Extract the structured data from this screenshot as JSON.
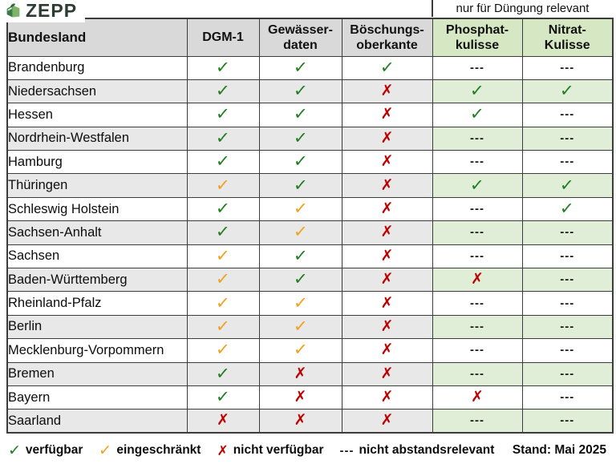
{
  "logo": {
    "text": "ZEPP"
  },
  "top_note": {
    "text": "nur für Düngung relevant"
  },
  "table": {
    "columns": [
      {
        "id": "bundesland",
        "label": "Bundesland",
        "header_bg": "gray"
      },
      {
        "id": "dgm-1",
        "label": "DGM-1",
        "header_bg": "gray"
      },
      {
        "id": "gewaesserdaten",
        "label": "Gewässer-\ndaten",
        "header_bg": "gray"
      },
      {
        "id": "boeschungsoberkante",
        "label": "Böschungs-\noberkante",
        "header_bg": "gray"
      },
      {
        "id": "phosphatkulisse",
        "label": "Phosphat-\nkulisse",
        "header_bg": "green"
      },
      {
        "id": "nitratkulisse",
        "label": "Nitrat-\nKulisse",
        "header_bg": "green"
      }
    ],
    "rows": [
      {
        "bundesland": "Brandenburg",
        "cells": [
          "check-green",
          "check-green",
          "check-green",
          "dash",
          "dash"
        ]
      },
      {
        "bundesland": "Niedersachsen",
        "cells": [
          "check-green",
          "check-green",
          "x-red",
          "check-green",
          "check-green"
        ]
      },
      {
        "bundesland": "Hessen",
        "cells": [
          "check-green",
          "check-green",
          "x-red",
          "check-green",
          "dash"
        ]
      },
      {
        "bundesland": "Nordrhein-Westfalen",
        "cells": [
          "check-green",
          "check-green",
          "x-red",
          "dash",
          "dash"
        ]
      },
      {
        "bundesland": "Hamburg",
        "cells": [
          "check-green",
          "check-green",
          "x-red",
          "dash",
          "dash"
        ]
      },
      {
        "bundesland": "Thüringen",
        "cells": [
          "check-orange",
          "check-green",
          "x-red",
          "check-green",
          "check-green"
        ]
      },
      {
        "bundesland": "Schleswig Holstein",
        "cells": [
          "check-green",
          "check-orange",
          "x-red",
          "dash",
          "check-green"
        ]
      },
      {
        "bundesland": "Sachsen-Anhalt",
        "cells": [
          "check-green",
          "check-orange",
          "x-red",
          "dash",
          "dash"
        ]
      },
      {
        "bundesland": "Sachsen",
        "cells": [
          "check-orange",
          "check-green",
          "x-red",
          "dash",
          "dash"
        ]
      },
      {
        "bundesland": "Baden-Württemberg",
        "cells": [
          "check-orange",
          "check-green",
          "x-red",
          "x-red",
          "dash"
        ]
      },
      {
        "bundesland": "Rheinland-Pfalz",
        "cells": [
          "check-orange",
          "check-orange",
          "x-red",
          "dash",
          "dash"
        ]
      },
      {
        "bundesland": "Berlin",
        "cells": [
          "check-orange",
          "check-orange",
          "x-red",
          "dash",
          "dash"
        ]
      },
      {
        "bundesland": "Mecklenburg-Vorpommern",
        "cells": [
          "check-orange",
          "check-orange",
          "x-red",
          "dash",
          "dash"
        ]
      },
      {
        "bundesland": "Bremen",
        "cells": [
          "check-green",
          "x-red",
          "x-red",
          "dash",
          "dash"
        ]
      },
      {
        "bundesland": "Bayern",
        "cells": [
          "check-green",
          "x-red",
          "x-red",
          "x-red",
          "dash"
        ]
      },
      {
        "bundesland": "Saarland",
        "cells": [
          "x-red",
          "x-red",
          "x-red",
          "dash",
          "dash"
        ]
      }
    ]
  },
  "symbols": {
    "check-green": {
      "glyph": "✓",
      "color": "#1f7d1f",
      "class": "sym-check",
      "meaning": "verfügbar"
    },
    "check-orange": {
      "glyph": "✓",
      "color": "#f0a11d",
      "class": "sym-check",
      "meaning": "eingeschränkt"
    },
    "x-red": {
      "glyph": "✗",
      "color": "#c00000",
      "class": "sym-x",
      "meaning": "nicht verfügbar"
    },
    "dash": {
      "glyph": "---",
      "color": "#1a1a1a",
      "class": "sym-dash",
      "meaning": "nicht abstandsrelevant"
    }
  },
  "legend": {
    "items": [
      {
        "symbol": "check-green",
        "label": "verfügbar"
      },
      {
        "symbol": "check-orange",
        "label": "eingeschränkt"
      },
      {
        "symbol": "x-red",
        "label": "nicht verfügbar"
      },
      {
        "symbol": "dash",
        "label": "nicht abstandsrelevant"
      }
    ],
    "stand": "Stand: Mai 2025"
  },
  "colors": {
    "row_stripe_gray": "#e8e8e8",
    "row_stripe_green": "#e1eed7",
    "header_gray": "#d9d9d9",
    "header_green": "#d6e7c3",
    "check_green": "#1f7d1f",
    "check_orange": "#f0a11d",
    "x_red": "#c00000",
    "border": "#3c3c3c"
  }
}
